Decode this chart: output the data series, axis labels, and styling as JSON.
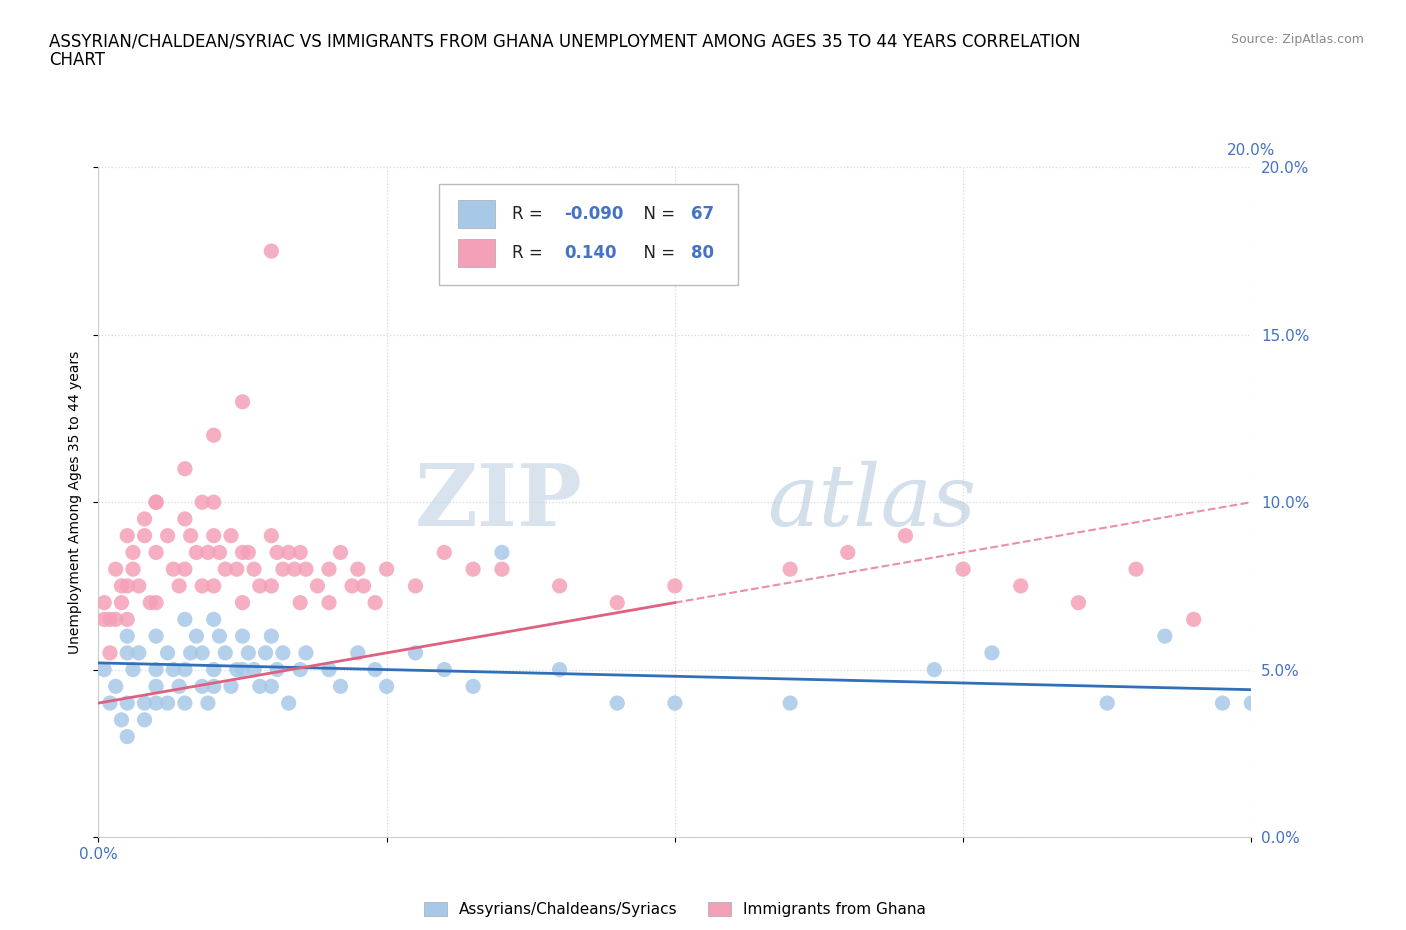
{
  "title_line1": "ASSYRIAN/CHALDEAN/SYRIAC VS IMMIGRANTS FROM GHANA UNEMPLOYMENT AMONG AGES 35 TO 44 YEARS CORRELATION",
  "title_line2": "CHART",
  "source_text": "Source: ZipAtlas.com",
  "ylabel": "Unemployment Among Ages 35 to 44 years",
  "xlim": [
    0.0,
    0.2
  ],
  "ylim": [
    0.0,
    0.2
  ],
  "xticks": [
    0.0,
    0.05,
    0.1,
    0.15,
    0.2
  ],
  "yticks": [
    0.0,
    0.05,
    0.1,
    0.15,
    0.2
  ],
  "xticklabels": [
    "0.0%",
    "",
    "",
    "",
    "20.0%"
  ],
  "yticklabels_right": [
    "0.0%",
    "5.0%",
    "10.0%",
    "15.0%",
    "20.0%"
  ],
  "blue_color": "#a8c8e8",
  "pink_color": "#f4a0b8",
  "blue_line_color": "#3070b8",
  "pink_line_color": "#e06080",
  "R_blue": -0.09,
  "N_blue": 67,
  "R_pink": 0.14,
  "N_pink": 80,
  "legend_label_blue": "Assyrians/Chaldeans/Syriacs",
  "legend_label_pink": "Immigrants from Ghana",
  "watermark_zip": "ZIP",
  "watermark_atlas": "atlas",
  "background_color": "#ffffff",
  "grid_color": "#d8d8d8",
  "tick_color": "#4472c4",
  "title_fontsize": 12,
  "axis_label_fontsize": 10,
  "tick_fontsize": 11,
  "blue_scatter_x": [
    0.001,
    0.002,
    0.003,
    0.004,
    0.005,
    0.005,
    0.005,
    0.005,
    0.006,
    0.007,
    0.008,
    0.008,
    0.01,
    0.01,
    0.01,
    0.01,
    0.012,
    0.012,
    0.013,
    0.014,
    0.015,
    0.015,
    0.015,
    0.016,
    0.017,
    0.018,
    0.018,
    0.019,
    0.02,
    0.02,
    0.02,
    0.021,
    0.022,
    0.023,
    0.024,
    0.025,
    0.025,
    0.026,
    0.027,
    0.028,
    0.029,
    0.03,
    0.03,
    0.031,
    0.032,
    0.033,
    0.035,
    0.036,
    0.04,
    0.042,
    0.045,
    0.048,
    0.05,
    0.055,
    0.06,
    0.065,
    0.07,
    0.08,
    0.09,
    0.1,
    0.12,
    0.145,
    0.155,
    0.175,
    0.185,
    0.195,
    0.2
  ],
  "blue_scatter_y": [
    0.05,
    0.04,
    0.045,
    0.035,
    0.055,
    0.04,
    0.06,
    0.03,
    0.05,
    0.055,
    0.04,
    0.035,
    0.06,
    0.05,
    0.045,
    0.04,
    0.055,
    0.04,
    0.05,
    0.045,
    0.065,
    0.05,
    0.04,
    0.055,
    0.06,
    0.045,
    0.055,
    0.04,
    0.065,
    0.05,
    0.045,
    0.06,
    0.055,
    0.045,
    0.05,
    0.06,
    0.05,
    0.055,
    0.05,
    0.045,
    0.055,
    0.06,
    0.045,
    0.05,
    0.055,
    0.04,
    0.05,
    0.055,
    0.05,
    0.045,
    0.055,
    0.05,
    0.045,
    0.055,
    0.05,
    0.045,
    0.085,
    0.05,
    0.04,
    0.04,
    0.04,
    0.05,
    0.055,
    0.04,
    0.06,
    0.04,
    0.04
  ],
  "pink_scatter_x": [
    0.001,
    0.002,
    0.003,
    0.004,
    0.005,
    0.005,
    0.006,
    0.007,
    0.008,
    0.009,
    0.01,
    0.01,
    0.01,
    0.012,
    0.013,
    0.014,
    0.015,
    0.015,
    0.016,
    0.017,
    0.018,
    0.018,
    0.019,
    0.02,
    0.02,
    0.02,
    0.021,
    0.022,
    0.023,
    0.024,
    0.025,
    0.025,
    0.026,
    0.027,
    0.028,
    0.03,
    0.03,
    0.031,
    0.032,
    0.033,
    0.034,
    0.035,
    0.035,
    0.036,
    0.038,
    0.04,
    0.04,
    0.042,
    0.044,
    0.045,
    0.046,
    0.048,
    0.05,
    0.055,
    0.06,
    0.065,
    0.07,
    0.08,
    0.09,
    0.1,
    0.12,
    0.13,
    0.14,
    0.15,
    0.16,
    0.17,
    0.18,
    0.19,
    0.03,
    0.025,
    0.02,
    0.015,
    0.01,
    0.008,
    0.006,
    0.005,
    0.004,
    0.003,
    0.002,
    0.001
  ],
  "pink_scatter_y": [
    0.07,
    0.065,
    0.08,
    0.07,
    0.09,
    0.065,
    0.08,
    0.075,
    0.09,
    0.07,
    0.1,
    0.085,
    0.07,
    0.09,
    0.08,
    0.075,
    0.095,
    0.08,
    0.09,
    0.085,
    0.1,
    0.075,
    0.085,
    0.1,
    0.09,
    0.075,
    0.085,
    0.08,
    0.09,
    0.08,
    0.085,
    0.07,
    0.085,
    0.08,
    0.075,
    0.09,
    0.075,
    0.085,
    0.08,
    0.085,
    0.08,
    0.085,
    0.07,
    0.08,
    0.075,
    0.08,
    0.07,
    0.085,
    0.075,
    0.08,
    0.075,
    0.07,
    0.08,
    0.075,
    0.085,
    0.08,
    0.08,
    0.075,
    0.07,
    0.075,
    0.08,
    0.085,
    0.09,
    0.08,
    0.075,
    0.07,
    0.08,
    0.065,
    0.175,
    0.13,
    0.12,
    0.11,
    0.1,
    0.095,
    0.085,
    0.075,
    0.075,
    0.065,
    0.055,
    0.065
  ]
}
